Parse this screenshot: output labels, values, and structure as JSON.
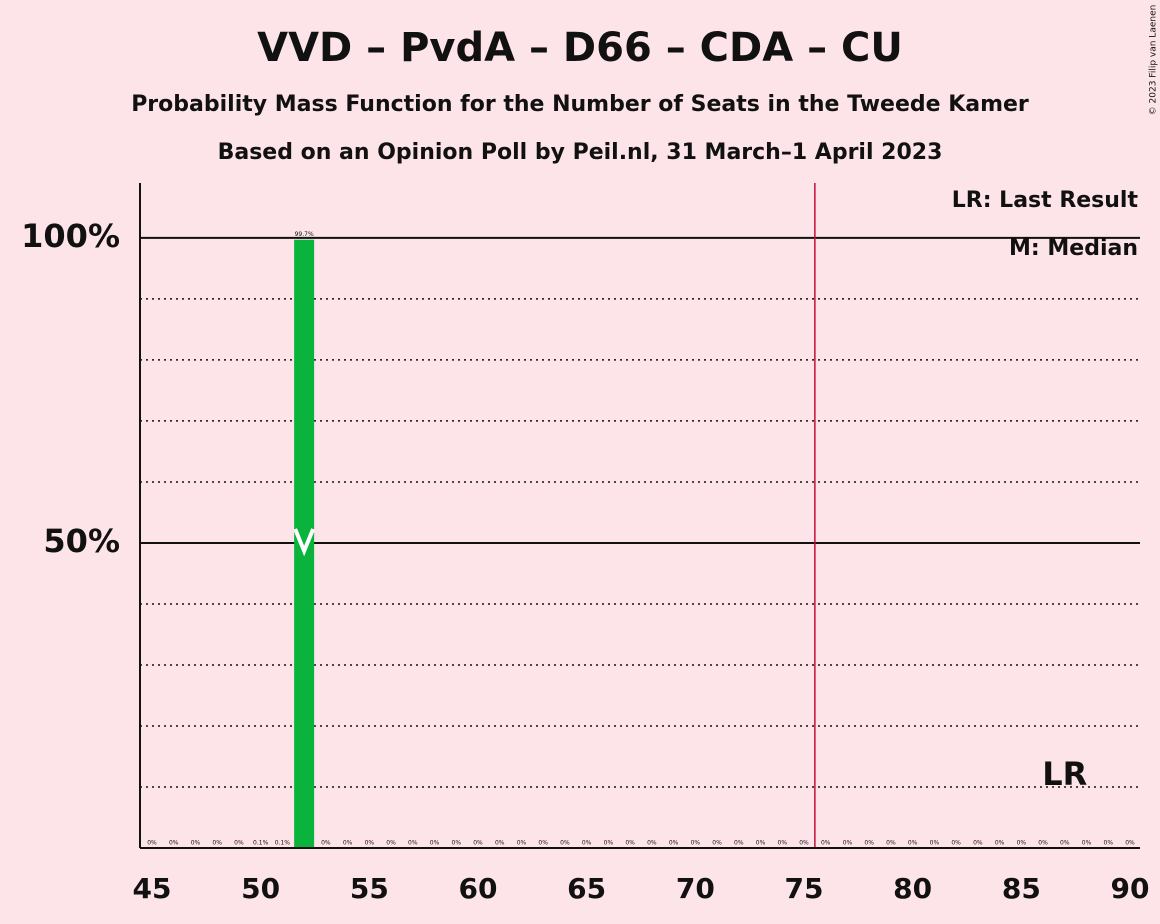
{
  "chart_data": {
    "type": "bar",
    "title": "VVD – PvdA – D66 – CDA – CU",
    "subtitle": "Probability Mass Function for the Number of Seats in the Tweede Kamer",
    "subtitle2": "Based on an Opinion Poll by Peil.nl, 31 March–1 April 2023",
    "copyright": "© 2023 Filip van Laenen",
    "legend": [
      "LR: Last Result",
      "M: Median"
    ],
    "x": [
      45,
      46,
      47,
      48,
      49,
      50,
      51,
      52,
      53,
      54,
      55,
      56,
      57,
      58,
      59,
      60,
      61,
      62,
      63,
      64,
      65,
      66,
      67,
      68,
      69,
      70,
      71,
      72,
      73,
      74,
      75,
      76,
      77,
      78,
      79,
      80,
      81,
      82,
      83,
      84,
      85,
      86,
      87,
      88,
      89,
      90
    ],
    "values": [
      0,
      0,
      0,
      0,
      0,
      0.1,
      0.1,
      99.7,
      0,
      0,
      0,
      0,
      0,
      0,
      0,
      0,
      0,
      0,
      0,
      0,
      0,
      0,
      0,
      0,
      0,
      0,
      0,
      0,
      0,
      0,
      0,
      0,
      0,
      0,
      0,
      0,
      0,
      0,
      0,
      0,
      0,
      0,
      0,
      0,
      0,
      0
    ],
    "value_labels": [
      "0%",
      "0%",
      "0%",
      "0%",
      "0%",
      "0.1%",
      "0.1%",
      "99.7%",
      "0%",
      "0%",
      "0%",
      "0%",
      "0%",
      "0%",
      "0%",
      "0%",
      "0%",
      "0%",
      "0%",
      "0%",
      "0%",
      "0%",
      "0%",
      "0%",
      "0%",
      "0%",
      "0%",
      "0%",
      "0%",
      "0%",
      "0%",
      "0%",
      "0%",
      "0%",
      "0%",
      "0%",
      "0%",
      "0%",
      "0%",
      "0%",
      "0%",
      "0%",
      "0%",
      "0%",
      "0%",
      "0%"
    ],
    "color": "#0ab43c",
    "xlim": [
      45,
      90
    ],
    "xticks": [
      45,
      50,
      55,
      60,
      65,
      70,
      75,
      80,
      85,
      90
    ],
    "ylim": [
      0,
      109
    ],
    "yticks": [
      {
        "value": 50,
        "label": "50%"
      },
      {
        "value": 100,
        "label": "100%"
      }
    ],
    "minor_yticks": [
      10,
      20,
      30,
      40,
      60,
      70,
      80,
      90
    ],
    "majority": 76,
    "majority_color": "#c0103a",
    "median": 52,
    "last_result": 87,
    "last_result_label": "LR"
  }
}
